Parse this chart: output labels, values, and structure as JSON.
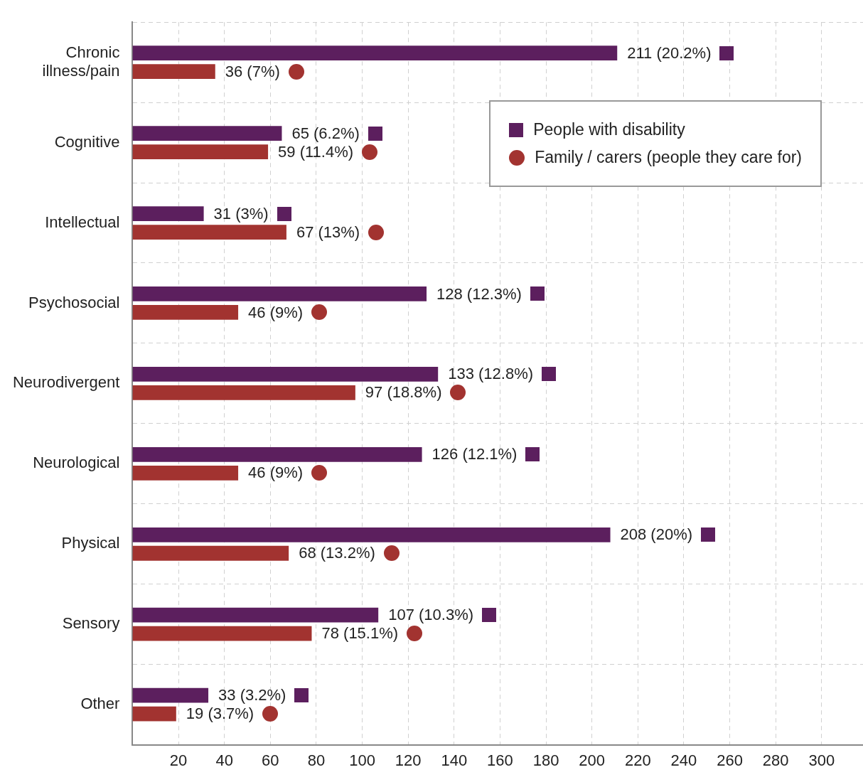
{
  "chart_data": {
    "type": "bar",
    "orientation": "horizontal",
    "categories": [
      "Chronic\nillness/pain",
      "Cognitive",
      "Intellectual",
      "Psychosocial",
      "Neurodivergent",
      "Neurological",
      "Physical",
      "Sensory",
      "Other"
    ],
    "series": [
      {
        "name": "People with disability",
        "color": "#5c1f5e",
        "marker": "square",
        "values": [
          211,
          65,
          31,
          128,
          133,
          126,
          208,
          107,
          33
        ],
        "value_labels": [
          "211 (20.2%)",
          "65 (6.2%)",
          "31 (3%)",
          "128 (12.3%)",
          "133 (12.8%)",
          "126 (12.1%)",
          "208 (20%)",
          "107 (10.3%)",
          "33 (3.2%)"
        ]
      },
      {
        "name": "Family / carers (people they care for)",
        "color": "#a23330",
        "marker": "circle",
        "values": [
          36,
          59,
          67,
          46,
          97,
          46,
          68,
          78,
          19
        ],
        "value_labels": [
          "36 (7%)",
          "59 (11.4%)",
          "67 (13%)",
          "46 (9%)",
          "97 (18.8%)",
          "46 (9%)",
          "68 (13.2%)",
          "78 (15.1%)",
          "19 (3.7%)"
        ]
      }
    ],
    "xlim": [
      0,
      318
    ],
    "xticks": [
      20,
      40,
      60,
      80,
      100,
      120,
      140,
      160,
      180,
      200,
      220,
      240,
      260,
      280,
      300
    ],
    "grid": true,
    "legend": "top right"
  }
}
